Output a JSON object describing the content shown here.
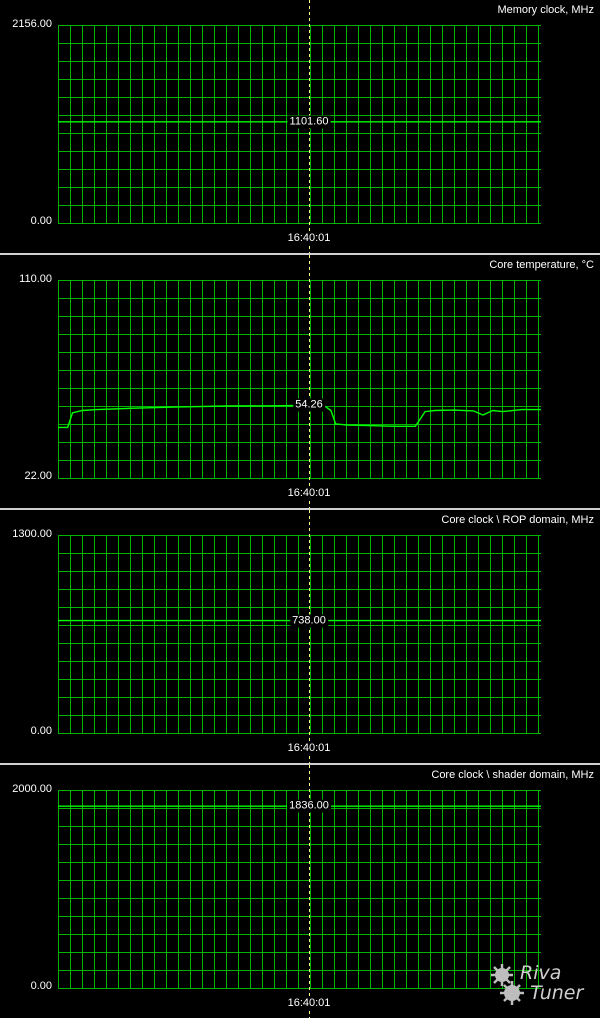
{
  "chart_data": [
    {
      "type": "line",
      "title": "Memory clock, MHz",
      "ylim": [
        0,
        2156
      ],
      "ymax_label": "2156.00",
      "ymin_label": "0.00",
      "time_label": "16:40:01",
      "current_value_label": "1101.60",
      "color": "#00ff00",
      "series": [
        {
          "x": [
            0,
            1
          ],
          "y": [
            1101.6,
            1101.6
          ]
        }
      ]
    },
    {
      "type": "line",
      "title": "Core temperature, °C",
      "ylim": [
        22,
        110
      ],
      "ymax_label": "110.00",
      "ymin_label": "22.00",
      "time_label": "16:40:01",
      "current_value_label": "54.26",
      "color": "#00ff00",
      "series": [
        {
          "x": [
            0.0,
            0.02,
            0.03,
            0.05,
            0.08,
            0.15,
            0.25,
            0.35,
            0.45,
            0.5,
            0.55,
            0.565,
            0.575,
            0.6,
            0.7,
            0.74,
            0.76,
            0.78,
            0.82,
            0.86,
            0.88,
            0.9,
            0.92,
            0.96,
            1.0
          ],
          "y": [
            44.5,
            44.5,
            51.0,
            52.0,
            52.4,
            53.0,
            53.6,
            54.0,
            54.1,
            54.26,
            54.3,
            52.0,
            46.0,
            45.5,
            45.0,
            45.0,
            51.5,
            52.0,
            52.2,
            51.8,
            50.0,
            52.0,
            51.5,
            52.4,
            52.4
          ]
        }
      ]
    },
    {
      "type": "line",
      "title": "Core clock \\ ROP domain, MHz",
      "ylim": [
        0,
        1300
      ],
      "ymax_label": "1300.00",
      "ymin_label": "0.00",
      "time_label": "16:40:01",
      "current_value_label": "738.00",
      "color": "#00ff00",
      "series": [
        {
          "x": [
            0,
            1
          ],
          "y": [
            738,
            738
          ]
        }
      ]
    },
    {
      "type": "line",
      "title": "Core clock \\ shader domain, MHz",
      "ylim": [
        0,
        2000
      ],
      "ymax_label": "2000.00",
      "ymin_label": "0.00",
      "time_label": "16:40:01",
      "current_value_label": "1836.00",
      "color": "#00ff00",
      "series": [
        {
          "x": [
            0,
            1
          ],
          "y": [
            1836,
            1836
          ]
        }
      ]
    }
  ],
  "watermark": {
    "line1": "Riva",
    "line2": "Tuner"
  }
}
